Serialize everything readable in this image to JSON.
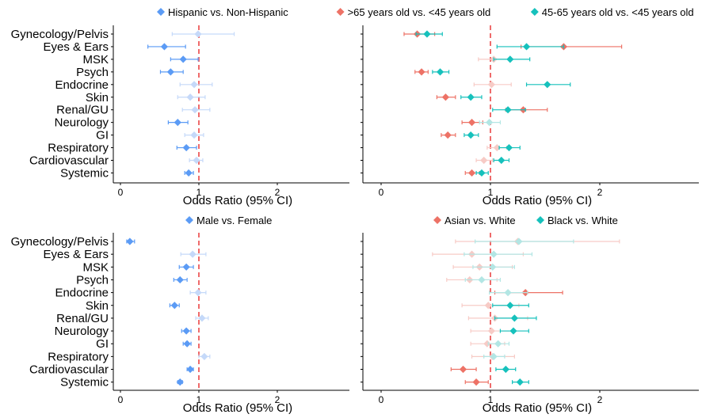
{
  "shared": {
    "categories": [
      "Gynecology/Pelvis",
      "Eyes & Ears",
      "MSK",
      "Psych",
      "Endocrine",
      "Skin",
      "Renal/GU",
      "Neurology",
      "GI",
      "Respiratory",
      "Cardiovascular",
      "Systemic"
    ],
    "xlabel": "Odds Ratio (95% CI)",
    "xticks": [
      0,
      1,
      2
    ],
    "xtick_labels": [
      "0",
      "1",
      "2"
    ],
    "reference_line": 1
  },
  "colors": {
    "blue": "#5b9bf5",
    "blue_faded": "#c5d9f9",
    "red": "#ed7266",
    "red_faded": "#f7cbc6",
    "teal": "#16c1bc",
    "teal_faded": "#b3e6e4",
    "refline": "#ef6b6b"
  },
  "chart_data": [
    {
      "type": "scatter",
      "panel": "top-left",
      "xlim": [
        -0.1,
        2.9
      ],
      "legend": "top",
      "series": [
        {
          "name": "Hispanic vs. Non-Hispanic",
          "color": "blue",
          "points": [
            {
              "or": 0.99,
              "lo": 0.66,
              "hi": 1.45,
              "sig": false
            },
            {
              "or": 0.56,
              "lo": 0.35,
              "hi": 0.83,
              "sig": true
            },
            {
              "or": 0.8,
              "lo": 0.64,
              "hi": 0.99,
              "sig": true
            },
            {
              "or": 0.64,
              "lo": 0.51,
              "hi": 0.8,
              "sig": true
            },
            {
              "or": 0.94,
              "lo": 0.76,
              "hi": 1.17,
              "sig": false
            },
            {
              "or": 0.89,
              "lo": 0.73,
              "hi": 1.08,
              "sig": false
            },
            {
              "or": 0.95,
              "lo": 0.79,
              "hi": 1.14,
              "sig": false
            },
            {
              "or": 0.73,
              "lo": 0.61,
              "hi": 0.86,
              "sig": true
            },
            {
              "or": 0.94,
              "lo": 0.82,
              "hi": 1.06,
              "sig": false
            },
            {
              "or": 0.84,
              "lo": 0.72,
              "hi": 0.97,
              "sig": true
            },
            {
              "or": 0.97,
              "lo": 0.88,
              "hi": 1.05,
              "sig": false
            },
            {
              "or": 0.87,
              "lo": 0.82,
              "hi": 0.93,
              "sig": true
            }
          ]
        }
      ]
    },
    {
      "type": "scatter",
      "panel": "top-right",
      "xlim": [
        -0.1,
        2.9
      ],
      "legend": "top",
      "series": [
        {
          "name": ">65 years old vs. <45 years old",
          "color": "red",
          "points": [
            {
              "or": 0.33,
              "lo": 0.21,
              "hi": 0.49,
              "sig": true
            },
            {
              "or": 1.67,
              "lo": 1.28,
              "hi": 2.2,
              "sig": true
            },
            {
              "or": 1.03,
              "lo": 0.89,
              "hi": 1.18,
              "sig": false
            },
            {
              "or": 0.37,
              "lo": 0.31,
              "hi": 0.43,
              "sig": true
            },
            {
              "or": 1.01,
              "lo": 0.85,
              "hi": 1.19,
              "sig": false
            },
            {
              "or": 0.59,
              "lo": 0.51,
              "hi": 0.68,
              "sig": true
            },
            {
              "or": 1.3,
              "lo": 1.14,
              "hi": 1.52,
              "sig": true
            },
            {
              "or": 0.83,
              "lo": 0.74,
              "hi": 0.93,
              "sig": true
            },
            {
              "or": 0.61,
              "lo": 0.55,
              "hi": 0.68,
              "sig": true
            },
            {
              "or": 1.06,
              "lo": 0.97,
              "hi": 1.15,
              "sig": false
            },
            {
              "or": 0.94,
              "lo": 0.87,
              "hi": 1.02,
              "sig": false
            },
            {
              "or": 0.83,
              "lo": 0.77,
              "hi": 0.9,
              "sig": true
            }
          ]
        },
        {
          "name": "45-65 years old vs. <45 years old",
          "color": "teal",
          "points": [
            {
              "or": 0.42,
              "lo": 0.32,
              "hi": 0.56,
              "sig": true
            },
            {
              "or": 1.33,
              "lo": 1.06,
              "hi": 1.67,
              "sig": true
            },
            {
              "or": 1.18,
              "lo": 1.03,
              "hi": 1.36,
              "sig": true
            },
            {
              "or": 0.54,
              "lo": 0.47,
              "hi": 0.62,
              "sig": true
            },
            {
              "or": 1.52,
              "lo": 1.33,
              "hi": 1.73,
              "sig": true
            },
            {
              "or": 0.82,
              "lo": 0.73,
              "hi": 0.92,
              "sig": true
            },
            {
              "or": 1.16,
              "lo": 1.02,
              "hi": 1.32,
              "sig": true
            },
            {
              "or": 0.99,
              "lo": 0.9,
              "hi": 1.09,
              "sig": false
            },
            {
              "or": 0.82,
              "lo": 0.76,
              "hi": 0.89,
              "sig": true
            },
            {
              "or": 1.17,
              "lo": 1.08,
              "hi": 1.27,
              "sig": true
            },
            {
              "or": 1.1,
              "lo": 1.03,
              "hi": 1.17,
              "sig": true
            },
            {
              "or": 0.92,
              "lo": 0.87,
              "hi": 0.98,
              "sig": true
            }
          ]
        }
      ]
    },
    {
      "type": "scatter",
      "panel": "bottom-left",
      "xlim": [
        -0.1,
        2.9
      ],
      "legend": "top",
      "series": [
        {
          "name": "Male vs. Female",
          "color": "blue",
          "points": [
            {
              "or": 0.12,
              "lo": 0.08,
              "hi": 0.18,
              "sig": true
            },
            {
              "or": 0.92,
              "lo": 0.77,
              "hi": 1.09,
              "sig": false
            },
            {
              "or": 0.84,
              "lo": 0.75,
              "hi": 0.93,
              "sig": true
            },
            {
              "or": 0.76,
              "lo": 0.68,
              "hi": 0.85,
              "sig": true
            },
            {
              "or": 0.99,
              "lo": 0.89,
              "hi": 1.09,
              "sig": false
            },
            {
              "or": 0.69,
              "lo": 0.63,
              "hi": 0.75,
              "sig": true
            },
            {
              "or": 1.04,
              "lo": 0.96,
              "hi": 1.12,
              "sig": false
            },
            {
              "or": 0.84,
              "lo": 0.78,
              "hi": 0.9,
              "sig": true
            },
            {
              "or": 0.85,
              "lo": 0.8,
              "hi": 0.9,
              "sig": true
            },
            {
              "or": 1.07,
              "lo": 1.0,
              "hi": 1.14,
              "sig": false
            },
            {
              "or": 0.89,
              "lo": 0.85,
              "hi": 0.93,
              "sig": true
            },
            {
              "or": 0.76,
              "lo": 0.73,
              "hi": 0.79,
              "sig": true
            }
          ]
        }
      ]
    },
    {
      "type": "scatter",
      "panel": "bottom-right",
      "xlim": [
        -0.1,
        2.9
      ],
      "legend": "top",
      "series": [
        {
          "name": "Asian vs. White",
          "color": "red",
          "points": [
            {
              "or": 1.25,
              "lo": 0.68,
              "hi": 2.18,
              "sig": false
            },
            {
              "or": 0.83,
              "lo": 0.47,
              "hi": 1.3,
              "sig": false
            },
            {
              "or": 0.9,
              "lo": 0.66,
              "hi": 1.2,
              "sig": false
            },
            {
              "or": 0.81,
              "lo": 0.6,
              "hi": 1.06,
              "sig": false
            },
            {
              "or": 1.32,
              "lo": 1.04,
              "hi": 1.66,
              "sig": true
            },
            {
              "or": 0.98,
              "lo": 0.74,
              "hi": 1.26,
              "sig": false
            },
            {
              "or": 1.04,
              "lo": 0.8,
              "hi": 1.34,
              "sig": false
            },
            {
              "or": 1.01,
              "lo": 0.82,
              "hi": 1.21,
              "sig": false
            },
            {
              "or": 0.97,
              "lo": 0.82,
              "hi": 1.13,
              "sig": false
            },
            {
              "or": 1.02,
              "lo": 0.83,
              "hi": 1.22,
              "sig": false
            },
            {
              "or": 0.75,
              "lo": 0.64,
              "hi": 0.87,
              "sig": true
            },
            {
              "or": 0.87,
              "lo": 0.77,
              "hi": 0.98,
              "sig": true
            }
          ]
        },
        {
          "name": "Black vs. White",
          "color": "teal",
          "points": [
            {
              "or": 1.26,
              "lo": 0.86,
              "hi": 1.76,
              "sig": false
            },
            {
              "or": 1.03,
              "lo": 0.76,
              "hi": 1.38,
              "sig": false
            },
            {
              "or": 1.02,
              "lo": 0.84,
              "hi": 1.22,
              "sig": false
            },
            {
              "or": 0.92,
              "lo": 0.77,
              "hi": 1.09,
              "sig": false
            },
            {
              "or": 1.16,
              "lo": 0.99,
              "hi": 1.34,
              "sig": false
            },
            {
              "or": 1.18,
              "lo": 1.02,
              "hi": 1.35,
              "sig": true
            },
            {
              "or": 1.22,
              "lo": 1.04,
              "hi": 1.42,
              "sig": true
            },
            {
              "or": 1.21,
              "lo": 1.09,
              "hi": 1.35,
              "sig": true
            },
            {
              "or": 1.07,
              "lo": 0.98,
              "hi": 1.17,
              "sig": false
            },
            {
              "or": 1.03,
              "lo": 0.94,
              "hi": 1.13,
              "sig": false
            },
            {
              "or": 1.14,
              "lo": 1.05,
              "hi": 1.23,
              "sig": true
            },
            {
              "or": 1.27,
              "lo": 1.2,
              "hi": 1.35,
              "sig": true
            }
          ]
        }
      ]
    }
  ]
}
